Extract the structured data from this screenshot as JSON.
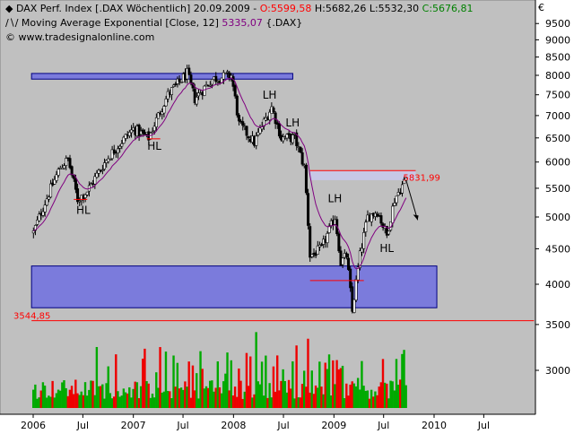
{
  "header": {
    "line1_prefix": "DAX Perf. Index [.DAX  Wöchentlich] 20.09.2009 - ",
    "open": "O:5599,58",
    "high": "H:5682,26",
    "low": "L:5532,30",
    "close": "C:5676,81",
    "line2_prefix": "Moving Average Exponential [Close, 12] ",
    "ma_value": "5335,07",
    "line2_suffix": " {.DAX}",
    "copyright": "© www.tradesignalonline.com"
  },
  "colors": {
    "plot_bg": "#c0c0c0",
    "zone": "#7b7bdc",
    "zone_border": "#000080",
    "ma_line": "#800080",
    "support_line": "#ff0000",
    "volume_up": "#00aa00",
    "volume_down": "#ee0000",
    "open_color": "#ff0000",
    "close_color": "#008000",
    "ma_value_color": "#800080"
  },
  "chart_data": {
    "type": "candlestick",
    "title": "DAX Perf. Index [.DAX  Wöchentlich] 20.09.2009",
    "currency_label": "€",
    "y_ticks": [
      "9500",
      "9000",
      "8500",
      "8000",
      "7500",
      "7000",
      "6500",
      "6000",
      "5500",
      "5000",
      "4500",
      "4000",
      "3500"
    ],
    "volume_tick": "3000",
    "x_ticks": [
      "2006",
      "Jul",
      "2007",
      "Jul",
      "2008",
      "Jul",
      "2009",
      "Jul",
      "2010",
      "Jul"
    ],
    "price_anchors": [
      {
        "date": "2006-01-02",
        "value": 4750
      },
      {
        "date": "2006-04-10",
        "value": 5900
      },
      {
        "date": "2006-05-08",
        "value": 6050
      },
      {
        "date": "2006-06-12",
        "value": 5300
      },
      {
        "date": "2006-07-17",
        "value": 5450
      },
      {
        "date": "2006-10-02",
        "value": 6100
      },
      {
        "date": "2007-01-01",
        "value": 6700
      },
      {
        "date": "2007-02-26",
        "value": 6500
      },
      {
        "date": "2007-05-07",
        "value": 7500
      },
      {
        "date": "2007-07-16",
        "value": 8050
      },
      {
        "date": "2007-08-13",
        "value": 7400
      },
      {
        "date": "2007-10-15",
        "value": 7900
      },
      {
        "date": "2007-12-24",
        "value": 8000
      },
      {
        "date": "2008-01-21",
        "value": 6800
      },
      {
        "date": "2008-03-17",
        "value": 6400
      },
      {
        "date": "2008-05-19",
        "value": 7200
      },
      {
        "date": "2008-06-23",
        "value": 6500
      },
      {
        "date": "2008-08-11",
        "value": 6500
      },
      {
        "date": "2008-09-15",
        "value": 5900
      },
      {
        "date": "2008-10-06",
        "value": 4400
      },
      {
        "date": "2008-11-17",
        "value": 4500
      },
      {
        "date": "2009-01-05",
        "value": 5000
      },
      {
        "date": "2009-01-26",
        "value": 4300
      },
      {
        "date": "2009-02-16",
        "value": 4400
      },
      {
        "date": "2009-03-09",
        "value": 3650
      },
      {
        "date": "2009-04-06",
        "value": 4400
      },
      {
        "date": "2009-05-04",
        "value": 5000
      },
      {
        "date": "2009-06-08",
        "value": 5100
      },
      {
        "date": "2009-07-13",
        "value": 4700
      },
      {
        "date": "2009-08-10",
        "value": 5300
      },
      {
        "date": "2009-09-21",
        "value": 5680
      }
    ],
    "series": [
      {
        "name": "DAX Perf. Index",
        "style": "candlestick"
      },
      {
        "name": "Moving Average Exponential [Close, 12]",
        "style": "line"
      }
    ],
    "resistance_zones": [
      {
        "y_from": 7900,
        "y_to": 8050,
        "x_from": "2005-12-26",
        "x_to": "2008-08-04"
      },
      {
        "y_from": 3700,
        "y_to": 4250,
        "x_from": "2005-12-26",
        "x_to": "2010-01-11"
      }
    ],
    "highlight_zone": {
      "y_from": 5650,
      "y_to": 5831.99,
      "x_from": "2008-10-06",
      "x_to": "2009-10-26"
    },
    "horizontal_lines": [
      {
        "value": 5831.99,
        "label": "5831,99",
        "x_from": "2008-10-06",
        "x_to": "2009-10-26"
      },
      {
        "value": 3544.85,
        "label": "3544,85",
        "x_from": "2005-12-26",
        "x_to": "2010-12-31"
      }
    ],
    "support_marks": [
      {
        "value": 5300,
        "x_from": "2006-05-29",
        "x_to": "2006-07-17"
      },
      {
        "value": 6480,
        "x_from": "2007-02-19",
        "x_to": "2007-04-09"
      },
      {
        "value": 4050,
        "x_from": "2008-10-06",
        "x_to": "2009-04-20"
      }
    ],
    "annotations": [
      {
        "text": "HL",
        "date": "2006-07-03",
        "value": 5050
      },
      {
        "text": "HL",
        "date": "2007-03-19",
        "value": 6250
      },
      {
        "text": "LH",
        "date": "2008-05-12",
        "value": 7400
      },
      {
        "text": "LH",
        "date": "2008-08-04",
        "value": 6750
      },
      {
        "text": "LH",
        "date": "2009-01-05",
        "value": 5250
      },
      {
        "text": "HL",
        "date": "2009-07-13",
        "value": 4450
      }
    ],
    "projection_arrow": {
      "from_date": "2009-09-21",
      "from_value": 5650,
      "to_date": "2009-11-02",
      "to_value": 4950
    },
    "ylim": [
      3300,
      9700
    ],
    "grid": false,
    "legend": "top-left"
  }
}
